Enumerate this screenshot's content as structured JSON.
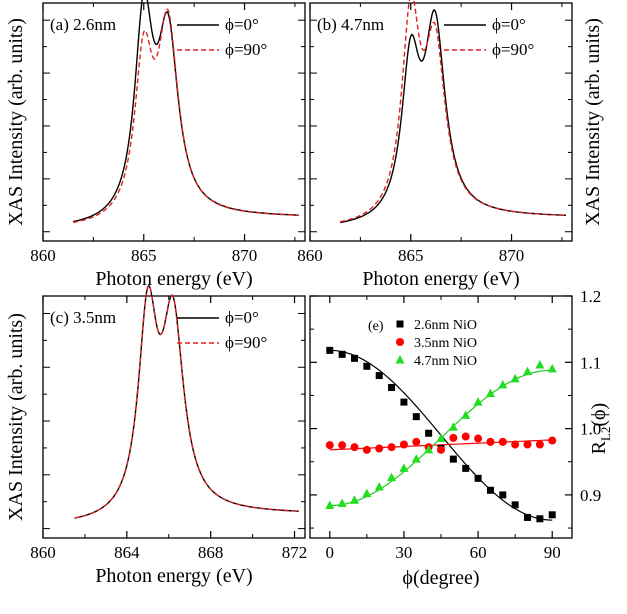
{
  "chart_data": [
    {
      "id": "a",
      "type": "line",
      "panel_label": "(a) 2.6nm",
      "xlabel": "Photon energy (eV)",
      "ylabel": "XAS Intensity (arb. units)",
      "xlim": [
        860,
        873
      ],
      "xticks": [
        860,
        865,
        870
      ],
      "xtick_labels": [
        "860",
        "865",
        "870"
      ],
      "ylim": [
        -0.05,
        1.08
      ],
      "legend_position": "top-right",
      "series": [
        {
          "name": "ϕ=0°",
          "style": "solid",
          "color": "#000000",
          "peaks": {
            "baseline": 0.0,
            "edge_step": 0.07,
            "p1": 1.0,
            "p2": 0.9
          }
        },
        {
          "name": "ϕ=90°",
          "style": "dashed",
          "color": "#e02020",
          "peaks": {
            "baseline": 0.0,
            "edge_step": 0.07,
            "p1": 0.8,
            "p2": 0.95
          }
        }
      ]
    },
    {
      "id": "b",
      "type": "line",
      "panel_label": "(b) 4.7nm",
      "xlabel": "Photon energy (eV)",
      "ylabel": "XAS Intensity (arb. units)",
      "xlim": [
        860,
        873
      ],
      "xticks": [
        860,
        865,
        870
      ],
      "xtick_labels": [
        "860",
        "865",
        "870"
      ],
      "ylim": [
        -0.05,
        1.08
      ],
      "legend_position": "top-right",
      "series": [
        {
          "name": "ϕ=0°",
          "style": "solid",
          "color": "#000000",
          "peaks": {
            "baseline": 0.0,
            "edge_step": 0.07,
            "p1": 0.78,
            "p2": 0.95
          }
        },
        {
          "name": "ϕ=90°",
          "style": "dashed",
          "color": "#e02020",
          "peaks": {
            "baseline": 0.0,
            "edge_step": 0.07,
            "p1": 1.0,
            "p2": 0.85
          }
        }
      ]
    },
    {
      "id": "c",
      "type": "line",
      "panel_label": "(c) 3.5nm",
      "xlabel": "Photon energy (eV)",
      "ylabel": "XAS Intensity (arb. units)",
      "xlim": [
        860,
        872.5
      ],
      "xticks": [
        860,
        864,
        868,
        872
      ],
      "xtick_labels": [
        "860",
        "864",
        "868",
        "872"
      ],
      "ylim": [
        -0.05,
        1.08
      ],
      "legend_position": "top-right",
      "series": [
        {
          "name": "ϕ=0°",
          "style": "solid",
          "color": "#000000",
          "peaks": {
            "baseline": 0.0,
            "edge_step": 0.07,
            "p1": 0.98,
            "p2": 0.95
          }
        },
        {
          "name": "ϕ=90°",
          "style": "dashed",
          "color": "#e02020",
          "peaks": {
            "baseline": 0.0,
            "edge_step": 0.07,
            "p1": 0.98,
            "p2": 0.95
          }
        }
      ]
    },
    {
      "id": "e",
      "type": "scatter",
      "panel_label": "(e)",
      "xlabel": "ϕ(degree)",
      "ylabel": "R_L2(ϕ)",
      "ylabel_main": "R",
      "ylabel_sub": "L2",
      "ylabel_tail": "(ϕ)",
      "xlim": [
        -8,
        98
      ],
      "ylim": [
        0.835,
        1.2
      ],
      "xticks": [
        0,
        30,
        60,
        90
      ],
      "xtick_labels": [
        "0",
        "30",
        "60",
        "90"
      ],
      "yticks": [
        0.9,
        1.0,
        1.1,
        1.2
      ],
      "ytick_labels": [
        "0.9",
        "1.0",
        "1.1",
        "1.2"
      ],
      "legend_position": "top-center",
      "series": [
        {
          "name": "2.6nm  NiO",
          "marker": "square",
          "color": "#000000",
          "x": [
            0,
            5,
            10,
            15,
            20,
            25,
            30,
            35,
            40,
            45,
            50,
            55,
            60,
            65,
            70,
            75,
            80,
            85,
            90
          ],
          "y": [
            1.118,
            1.112,
            1.106,
            1.094,
            1.08,
            1.062,
            1.04,
            1.018,
            0.993,
            0.97,
            0.954,
            0.94,
            0.925,
            0.907,
            0.9,
            0.885,
            0.866,
            0.864,
            0.87
          ]
        },
        {
          "name": "3.5nm  NiO",
          "marker": "circle",
          "color": "#ff0000",
          "x": [
            0,
            5,
            10,
            15,
            20,
            25,
            30,
            35,
            40,
            45,
            50,
            55,
            60,
            65,
            70,
            75,
            80,
            85,
            90
          ],
          "y": [
            0.975,
            0.975,
            0.972,
            0.968,
            0.97,
            0.972,
            0.976,
            0.98,
            0.972,
            0.968,
            0.986,
            0.988,
            0.985,
            0.98,
            0.98,
            0.976,
            0.976,
            0.976,
            0.982
          ]
        },
        {
          "name": "4.7nm NiO",
          "marker": "triangle",
          "color": "#22dd22",
          "x": [
            0,
            5,
            10,
            15,
            20,
            25,
            30,
            35,
            40,
            45,
            50,
            55,
            60,
            65,
            70,
            75,
            80,
            85,
            90
          ],
          "y": [
            0.884,
            0.887,
            0.892,
            0.902,
            0.912,
            0.926,
            0.94,
            0.954,
            0.968,
            0.985,
            1.002,
            1.02,
            1.04,
            1.053,
            1.066,
            1.075,
            1.086,
            1.096,
            1.09
          ]
        }
      ],
      "fits": [
        {
          "series": "2.6nm  NiO",
          "color": "#000000",
          "mid": 0.99,
          "amp": 0.128
        },
        {
          "series": "3.5nm  NiO",
          "color": "#ff0000",
          "line": [
            0.968,
            0.983
          ]
        },
        {
          "series": "4.7nm NiO",
          "color": "#22cc22",
          "mid": 0.986,
          "amp": -0.102
        }
      ]
    }
  ]
}
